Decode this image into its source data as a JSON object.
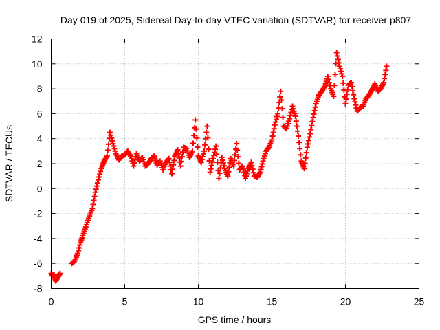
{
  "chart_data": {
    "type": "scatter",
    "title": "Day 019 of 2025, Sidereal Day-to-day VTEC variation (SDTVAR) for receiver p807",
    "xlabel": "GPS time / hours",
    "ylabel": "SDTVAR / TECUs",
    "xlim": [
      0,
      25
    ],
    "ylim": [
      -8,
      12
    ],
    "x_ticks": [
      0,
      5,
      10,
      15,
      20,
      25
    ],
    "y_ticks": [
      -8,
      -6,
      -4,
      -2,
      0,
      2,
      4,
      6,
      8,
      10,
      12
    ],
    "x_tick_labels": [
      "0",
      "5",
      "10",
      "15",
      "20",
      "25"
    ],
    "y_tick_labels": [
      "-8",
      "-6",
      "-4",
      "-2",
      "0",
      "2",
      "4",
      "6",
      "8",
      "10",
      "12"
    ],
    "grid": true,
    "marker": "+",
    "series": [
      {
        "name": "SDTVAR",
        "color": "#ff0000",
        "x": [
          0.0,
          0.1,
          0.2,
          0.3,
          0.4,
          0.5,
          0.6,
          1.4,
          1.6,
          1.8,
          2.0,
          2.2,
          2.4,
          2.6,
          2.8,
          3.0,
          3.2,
          3.4,
          3.6,
          3.8,
          4.0,
          4.2,
          4.4,
          4.6,
          4.8,
          5.0,
          5.2,
          5.4,
          5.6,
          5.8,
          6.0,
          6.2,
          6.4,
          6.6,
          6.8,
          7.0,
          7.2,
          7.4,
          7.6,
          7.8,
          8.0,
          8.2,
          8.4,
          8.6,
          8.8,
          9.0,
          9.2,
          9.4,
          9.6,
          9.8,
          10.0,
          10.2,
          10.4,
          10.6,
          10.8,
          11.0,
          11.2,
          11.4,
          11.6,
          11.8,
          12.0,
          12.2,
          12.4,
          12.6,
          12.8,
          13.0,
          13.2,
          13.4,
          13.6,
          13.8,
          14.0,
          14.2,
          14.4,
          14.6,
          14.8,
          15.0,
          15.2,
          15.4,
          15.6,
          15.8,
          16.0,
          16.2,
          16.4,
          16.6,
          16.8,
          17.0,
          17.2,
          17.4,
          17.6,
          17.8,
          18.0,
          18.2,
          18.4,
          18.6,
          18.8,
          19.0,
          19.2,
          19.4,
          19.6,
          19.8,
          20.0,
          20.2,
          20.4,
          20.6,
          20.8,
          21.0,
          21.2,
          21.4,
          21.6,
          21.8,
          22.0,
          22.2,
          22.4,
          22.6,
          22.8
        ],
        "y": [
          -6.8,
          -7.0,
          -6.9,
          -7.4,
          -7.2,
          -7.0,
          -6.8,
          -6.0,
          -5.8,
          -5.2,
          -4.3,
          -3.6,
          -2.9,
          -2.2,
          -1.6,
          -0.3,
          0.7,
          1.6,
          2.2,
          2.6,
          4.5,
          3.6,
          2.8,
          2.3,
          2.6,
          2.7,
          3.0,
          2.6,
          1.8,
          2.8,
          2.2,
          2.5,
          1.8,
          2.0,
          2.4,
          2.6,
          1.9,
          2.2,
          1.5,
          2.1,
          2.4,
          1.2,
          2.6,
          3.1,
          1.8,
          3.3,
          3.2,
          2.5,
          3.0,
          5.5,
          2.6,
          2.1,
          3.0,
          5.0,
          1.3,
          2.4,
          3.4,
          0.8,
          2.5,
          1.6,
          1.0,
          2.4,
          1.8,
          3.6,
          1.5,
          1.8,
          0.8,
          1.6,
          2.1,
          1.0,
          0.9,
          1.3,
          2.2,
          3.0,
          3.3,
          3.9,
          5.1,
          6.0,
          7.8,
          5.0,
          4.8,
          5.6,
          6.6,
          5.8,
          4.2,
          2.2,
          1.6,
          3.3,
          4.4,
          5.7,
          6.8,
          7.5,
          7.8,
          8.2,
          9.0,
          8.0,
          7.4,
          10.9,
          9.8,
          9.0,
          6.8,
          8.3,
          8.5,
          7.2,
          6.2,
          6.5,
          6.6,
          7.2,
          7.5,
          7.9,
          8.4,
          7.8,
          8.0,
          8.5,
          9.8
        ]
      }
    ]
  }
}
